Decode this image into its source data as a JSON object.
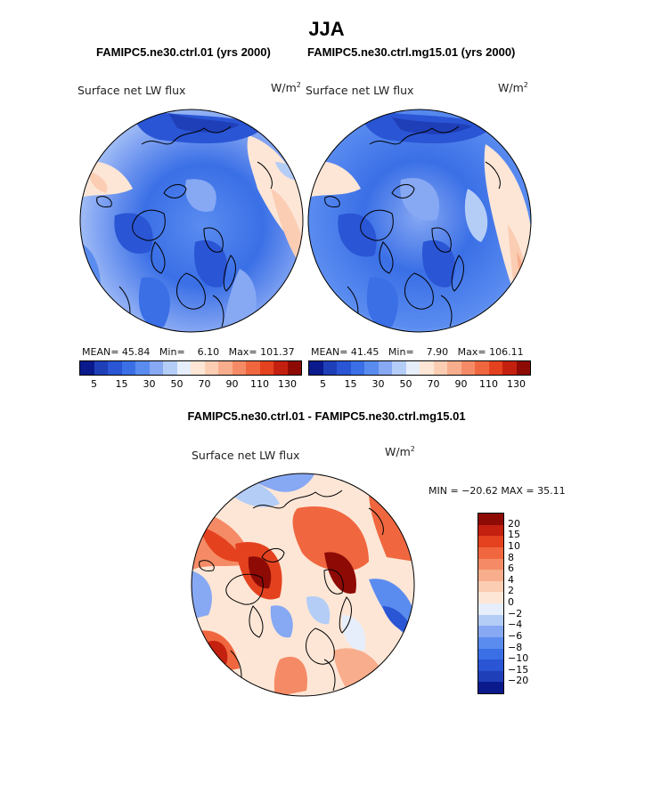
{
  "season": "JJA",
  "panel_left": {
    "case_label": "FAMIPC5.ne30.ctrl.01 (yrs 2000)",
    "variable": "Surface net LW flux",
    "units": "W/m",
    "units_sup": "2",
    "mean_label": "MEAN=",
    "mean": "45.84",
    "min_label": "Min=",
    "min": "6.10",
    "max_label": "Max=",
    "max": "101.37"
  },
  "panel_right": {
    "case_label": "FAMIPC5.ne30.ctrl.mg15.01 (yrs 2000)",
    "variable": "Surface net LW flux",
    "units": "W/m",
    "units_sup": "2",
    "mean_label": "MEAN=",
    "mean": "41.45",
    "min_label": "Min=",
    "min": "7.90",
    "max_label": "Max=",
    "max": "106.11"
  },
  "panel_diff": {
    "title": "FAMIPC5.ne30.ctrl.01 - FAMIPC5.ne30.ctrl.mg15.01",
    "variable": "Surface net LW flux",
    "units": "W/m",
    "units_sup": "2",
    "minmax": "MIN = −20.62 MAX =  35.11"
  },
  "abs_colorbar": {
    "colors": [
      "#0a1a8c",
      "#1f3fb8",
      "#2a55d4",
      "#3a6fe6",
      "#5a8cf0",
      "#87a8f3",
      "#b4cdf7",
      "#e6eefb",
      "#fde6d6",
      "#fbcdb3",
      "#f8ad8c",
      "#f58b66",
      "#f0673f",
      "#e4421f",
      "#c4200f",
      "#8e0a05"
    ],
    "ticks": [
      "5",
      "15",
      "30",
      "50",
      "70",
      "90",
      "110",
      "130"
    ]
  },
  "diff_colorbar": {
    "colors": [
      "#8e0a05",
      "#c4200f",
      "#e4421f",
      "#f0673f",
      "#f58b66",
      "#f8ad8c",
      "#fbcdb3",
      "#fde6d6",
      "#e6eefb",
      "#b4cdf7",
      "#87a8f3",
      "#5a8cf0",
      "#3a6fe6",
      "#2a55d4",
      "#1f3fb8",
      "#0a1a8c"
    ],
    "ticks": [
      "20",
      "15",
      "10",
      "8",
      "6",
      "4",
      "2",
      "0",
      "−2",
      "−4",
      "−6",
      "−8",
      "−10",
      "−15",
      "−20"
    ]
  }
}
